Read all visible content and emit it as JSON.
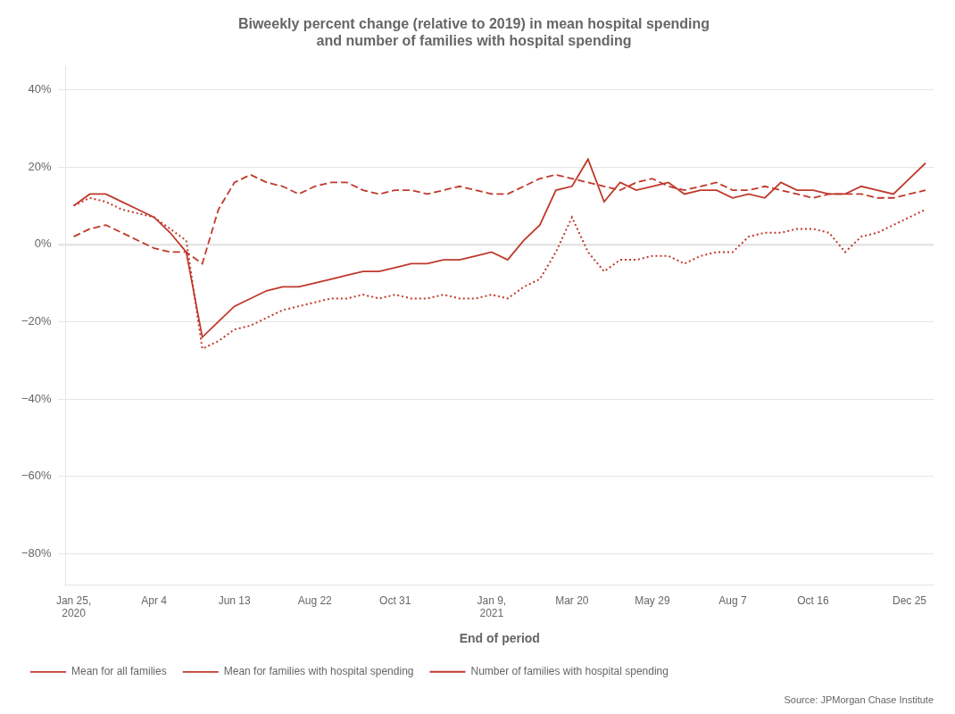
{
  "chart_data": {
    "type": "line",
    "title": "Biweekly percent change (relative to 2019) in mean hospital spending\nand number of families with hospital spending",
    "xlabel": "End of period",
    "source": "Source: JPMorgan Chase Institute",
    "categories": [
      "Jan 25,\n2020",
      null,
      null,
      null,
      null,
      "Apr 4",
      null,
      null,
      null,
      null,
      "Jun 13",
      null,
      null,
      null,
      null,
      "Aug 22",
      null,
      null,
      null,
      null,
      "Oct 31",
      null,
      null,
      null,
      null,
      null,
      "Jan 9,\n2021",
      null,
      null,
      null,
      null,
      "Mar 20",
      null,
      null,
      null,
      null,
      "May 29",
      null,
      null,
      null,
      null,
      "Aug 7",
      null,
      null,
      null,
      null,
      "Oct 16",
      null,
      null,
      null,
      null,
      null,
      "Dec 25",
      null
    ],
    "series": [
      {
        "name": "Mean for all families",
        "color": "#c0392b",
        "line_style": "solid",
        "values": [
          10,
          13,
          13,
          11,
          9,
          7,
          3,
          -2,
          -24,
          -20,
          -16,
          -14,
          -12,
          -11,
          -11,
          -10,
          -9,
          -8,
          -7,
          -7,
          -6,
          -5,
          -5,
          -4,
          -4,
          -3,
          -2,
          -4,
          1,
          5,
          14,
          15,
          22,
          11,
          16,
          14,
          15,
          16,
          13,
          14,
          14,
          12,
          13,
          12,
          16,
          14,
          14,
          13,
          13,
          15,
          14,
          13,
          17,
          21
        ]
      },
      {
        "name": "Mean for families with hospital spending",
        "color": "#c0392b",
        "line_style": "dashed",
        "values": [
          2,
          4,
          5,
          3,
          1,
          -1,
          -2,
          -2,
          -5,
          9,
          16,
          18,
          16,
          15,
          13,
          15,
          16,
          16,
          14,
          13,
          14,
          14,
          13,
          14,
          15,
          14,
          13,
          13,
          15,
          17,
          18,
          17,
          16,
          15,
          14,
          16,
          17,
          15,
          14,
          15,
          16,
          14,
          14,
          15,
          14,
          13,
          12,
          13,
          13,
          13,
          12,
          12,
          13,
          14
        ]
      },
      {
        "name": "Number of families with hospital spending",
        "color": "#c0392b",
        "line_style": "dotted",
        "values": [
          10,
          12,
          11,
          9,
          8,
          7,
          4,
          1,
          -27,
          -25,
          -22,
          -21,
          -19,
          -17,
          -16,
          -15,
          -14,
          -14,
          -13,
          -14,
          -13,
          -14,
          -14,
          -13,
          -14,
          -14,
          -13,
          -14,
          -11,
          -9,
          -2,
          7,
          -2,
          -7,
          -4,
          -4,
          -3,
          -3,
          -5,
          -3,
          -2,
          -2,
          2,
          3,
          3,
          4,
          4,
          3,
          -2,
          2,
          3,
          5,
          7,
          9
        ]
      }
    ],
    "ylim": [
      -88,
      46
    ],
    "yticks": [
      {
        "value": 40,
        "label": "40%"
      },
      {
        "value": 20,
        "label": "20%"
      },
      {
        "value": 0,
        "label": "0%"
      },
      {
        "value": -20,
        "label": "−20%"
      },
      {
        "value": -40,
        "label": "−40%"
      },
      {
        "value": -60,
        "label": "−60%"
      },
      {
        "value": -80,
        "label": "−80%"
      }
    ],
    "grid": "y",
    "legend": "bottom"
  }
}
